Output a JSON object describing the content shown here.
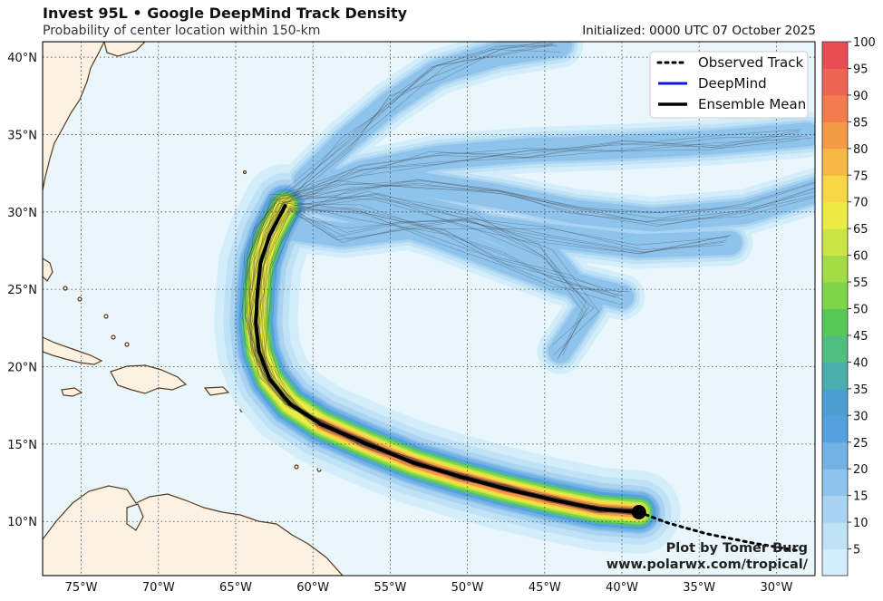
{
  "header": {
    "title": "Invest 95L • Google DeepMind Track Density",
    "subtitle": "Probability of center location within 150-km",
    "initialized": "Initialized: 0000 UTC 07 October 2025"
  },
  "map": {
    "lon_range": [
      -77.5,
      -27.5
    ],
    "lat_range": [
      6.5,
      41
    ],
    "lon_ticks": [
      {
        "value": -75,
        "label": "75°W"
      },
      {
        "value": -70,
        "label": "70°W"
      },
      {
        "value": -65,
        "label": "65°W"
      },
      {
        "value": -60,
        "label": "60°W"
      },
      {
        "value": -55,
        "label": "55°W"
      },
      {
        "value": -50,
        "label": "50°W"
      },
      {
        "value": -45,
        "label": "45°W"
      },
      {
        "value": -40,
        "label": "40°W"
      },
      {
        "value": -35,
        "label": "35°W"
      },
      {
        "value": -30,
        "label": "30°W"
      }
    ],
    "lat_ticks": [
      {
        "value": 10,
        "label": "10°N"
      },
      {
        "value": 15,
        "label": "15°N"
      },
      {
        "value": 20,
        "label": "20°N"
      },
      {
        "value": 25,
        "label": "25°N"
      },
      {
        "value": 30,
        "label": "30°N"
      },
      {
        "value": 35,
        "label": "35°N"
      },
      {
        "value": 40,
        "label": "40°N"
      }
    ],
    "gridlines": true,
    "ocean_color": "#e9f7fd",
    "land_color": "#fbf2e4",
    "coast_color": "#5a3a1e"
  },
  "legend": {
    "placement": "top-right",
    "items": [
      {
        "label": "Observed Track",
        "style": "dotted",
        "color": "#000000"
      },
      {
        "label": "DeepMind",
        "style": "solid",
        "color": "#1616d8"
      },
      {
        "label": "Ensemble Mean",
        "style": "solid",
        "color": "#000000"
      }
    ]
  },
  "colorbar": {
    "levels": [
      5,
      10,
      15,
      20,
      25,
      30,
      35,
      40,
      45,
      50,
      55,
      60,
      65,
      70,
      75,
      80,
      85,
      90,
      95,
      100
    ],
    "colors": [
      "#d3eefa",
      "#c0e2f6",
      "#a9d3f1",
      "#8ec3ec",
      "#74b2e6",
      "#55a0de",
      "#4a9fd0",
      "#49aeac",
      "#4fbe80",
      "#58c958",
      "#7fd44a",
      "#a4dc45",
      "#cbe446",
      "#ecec44",
      "#f7d745",
      "#f6b944",
      "#f49b46",
      "#f27c4d",
      "#ee6453",
      "#ea4c55"
    ]
  },
  "tracks": {
    "ensemble_mean": [
      [
        -38.9,
        10.6
      ],
      [
        -41.5,
        10.8
      ],
      [
        -44.5,
        11.4
      ],
      [
        -47.5,
        12.1
      ],
      [
        -50.5,
        12.9
      ],
      [
        -53.5,
        13.8
      ],
      [
        -56.5,
        15.0
      ],
      [
        -59.5,
        16.3
      ],
      [
        -61.5,
        17.6
      ],
      [
        -62.8,
        19.2
      ],
      [
        -63.5,
        21.0
      ],
      [
        -63.7,
        22.8
      ],
      [
        -63.6,
        24.8
      ],
      [
        -63.4,
        26.7
      ],
      [
        -62.8,
        28.5
      ],
      [
        -61.8,
        30.4
      ]
    ],
    "observed": [
      [
        -38.9,
        10.6
      ],
      [
        -37.0,
        9.9
      ],
      [
        -34.5,
        9.2
      ],
      [
        -31.5,
        8.6
      ],
      [
        -28.5,
        8.1
      ]
    ],
    "current_position": [
      -38.9,
      10.6
    ]
  },
  "credit": {
    "line1": "Plot by Tomer Burg",
    "line2": "www.polarwx.com/tropical/"
  }
}
